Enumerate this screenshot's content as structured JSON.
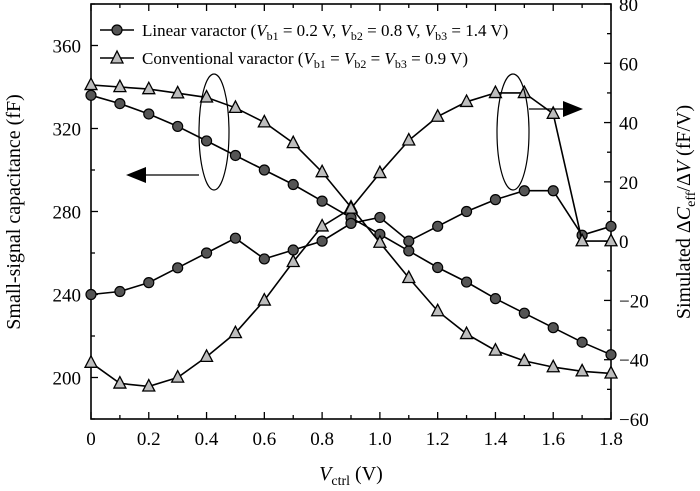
{
  "chart_data": {
    "type": "line",
    "x": [
      0,
      0.1,
      0.2,
      0.3,
      0.4,
      0.5,
      0.6,
      0.7,
      0.8,
      0.9,
      1.0,
      1.1,
      1.2,
      1.3,
      1.4,
      1.5,
      1.6,
      1.7,
      1.8
    ],
    "xlim": [
      0,
      1.8
    ],
    "ylim_left": [
      180,
      380
    ],
    "ylim_right": [
      -60,
      80
    ],
    "xticks": [
      "0",
      "0.2",
      "0.4",
      "0.6",
      "0.8",
      "1.0",
      "1.2",
      "1.4",
      "1.6",
      "1.8"
    ],
    "yticks_left": [
      "200",
      "240",
      "280",
      "320",
      "360"
    ],
    "yticks_right": [
      "−60",
      "−40",
      "−20",
      "0",
      "20",
      "40",
      "60",
      "80"
    ],
    "xlabel": {
      "main": "V",
      "sub": "ctrl",
      "unit": " (V)"
    },
    "ylabel_left": "Small-signal capacitance (fF)",
    "ylabel_right": {
      "prefix": "Simulated ΔC",
      "sub": "eff",
      "middle": "/ΔV",
      "unit": " (fF/V)"
    },
    "legend": [
      {
        "marker": "circle",
        "label_parts": [
          "Linear varactor (",
          "V",
          "b1",
          " = 0.2 V, ",
          "V",
          "b2",
          " = 0.8 V, ",
          "V",
          "b3",
          " = 1.4 V)"
        ]
      },
      {
        "marker": "triangle",
        "label_parts": [
          "Conventional varactor (",
          "V",
          "b1",
          " = ",
          "V",
          "b2",
          " = ",
          "V",
          "b3",
          " = 0.9 V)"
        ]
      }
    ],
    "legend_position": "top",
    "series": [
      {
        "marker": "circle",
        "axis": "left",
        "values": [
          336,
          332,
          327,
          321,
          314,
          307,
          300,
          293,
          285,
          277,
          269,
          261,
          253,
          246,
          238,
          231,
          224,
          217,
          211
        ]
      },
      {
        "marker": "triangle",
        "axis": "left",
        "values": [
          341,
          340,
          339,
          337,
          335,
          330,
          323,
          313,
          299,
          282,
          265,
          248,
          232,
          221,
          213,
          208,
          205,
          203,
          202
        ]
      },
      {
        "marker": "circle",
        "axis": "right",
        "values": [
          -18,
          -17,
          -14,
          -9,
          -4,
          1,
          -6,
          -3,
          0,
          6,
          8,
          0,
          5,
          10,
          14,
          17,
          17,
          2,
          5
        ]
      },
      {
        "marker": "triangle",
        "axis": "right",
        "values": [
          -41,
          -48,
          -49,
          -46,
          -39,
          -31,
          -20,
          -7,
          5,
          11,
          23,
          34,
          42,
          47,
          50,
          50,
          43,
          0,
          0
        ]
      }
    ],
    "annotations": [
      {
        "type": "ellipse-arrow",
        "direction": "left",
        "note": "arrow pointing to left axis"
      },
      {
        "type": "ellipse-arrow",
        "direction": "right",
        "note": "arrow pointing to right axis"
      }
    ],
    "grid": false
  }
}
